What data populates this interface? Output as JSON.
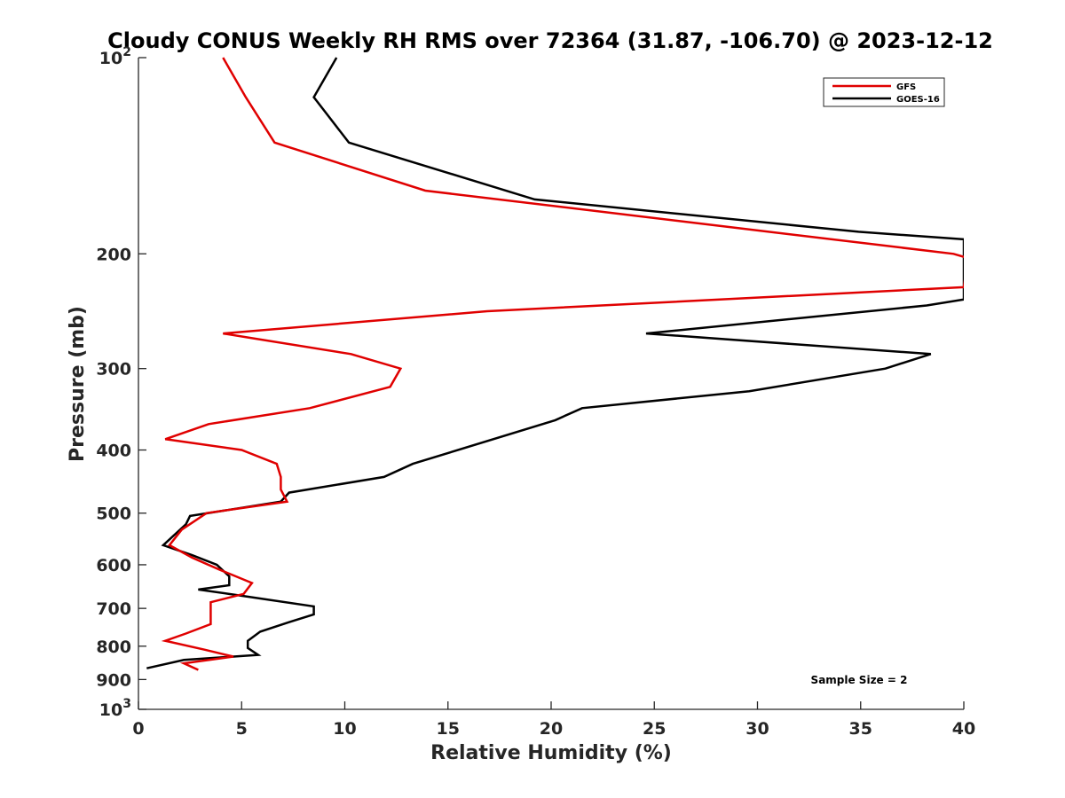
{
  "chart_data": {
    "type": "line",
    "title": "Cloudy CONUS Weekly RH RMS over 72364 (31.87, -106.70) @ 2023-12-12",
    "xlabel": "Relative Humidity (%)",
    "ylabel": "Pressure (mb)",
    "xlim": [
      0,
      40
    ],
    "ylim": [
      100,
      1000
    ],
    "y_scale": "log",
    "y_reversed": true,
    "grid": false,
    "x_ticks": [
      0,
      5,
      10,
      15,
      20,
      25,
      30,
      35,
      40
    ],
    "y_ticks": [
      {
        "value": 100,
        "label": "10",
        "sup": "2"
      },
      {
        "value": 200,
        "label": "200"
      },
      {
        "value": 300,
        "label": "300"
      },
      {
        "value": 400,
        "label": "400"
      },
      {
        "value": 500,
        "label": "500"
      },
      {
        "value": 600,
        "label": "600"
      },
      {
        "value": 700,
        "label": "700"
      },
      {
        "value": 800,
        "label": "800"
      },
      {
        "value": 900,
        "label": "900"
      },
      {
        "value": 1000,
        "label": "10",
        "sup": "3"
      }
    ],
    "legend_position": "top-right",
    "annotation": "Sample Size = 2",
    "series": [
      {
        "name": "GFS",
        "color": "#e00000",
        "points": [
          [
            4.1,
            100
          ],
          [
            5.2,
            115
          ],
          [
            6.6,
            135
          ],
          [
            13.9,
            160
          ],
          [
            39.5,
            200
          ],
          [
            40.2,
            203
          ],
          [
            40.0,
            225
          ],
          [
            16.9,
            245
          ],
          [
            4.1,
            265
          ],
          [
            10.3,
            285
          ],
          [
            12.7,
            300
          ],
          [
            12.2,
            320
          ],
          [
            8.3,
            345
          ],
          [
            3.4,
            365
          ],
          [
            1.3,
            385
          ],
          [
            5.0,
            400
          ],
          [
            6.7,
            420
          ],
          [
            6.9,
            440
          ],
          [
            6.9,
            460
          ],
          [
            7.2,
            480
          ],
          [
            3.3,
            500
          ],
          [
            2.1,
            530
          ],
          [
            1.5,
            560
          ],
          [
            2.6,
            585
          ],
          [
            3.9,
            610
          ],
          [
            5.5,
            640
          ],
          [
            5.1,
            665
          ],
          [
            3.5,
            685
          ],
          [
            3.5,
            705
          ],
          [
            3.5,
            740
          ],
          [
            2.3,
            765
          ],
          [
            1.3,
            785
          ],
          [
            3.2,
            810
          ],
          [
            4.6,
            830
          ],
          [
            2.2,
            850
          ],
          [
            2.9,
            870
          ]
        ]
      },
      {
        "name": "GOES-16",
        "color": "#000000",
        "points": [
          [
            9.6,
            100
          ],
          [
            8.5,
            115
          ],
          [
            10.2,
            135
          ],
          [
            19.2,
            165
          ],
          [
            34.9,
            185
          ],
          [
            40.0,
            190
          ],
          [
            40.0,
            235
          ],
          [
            38.2,
            240
          ],
          [
            24.6,
            265
          ],
          [
            38.4,
            285
          ],
          [
            36.2,
            300
          ],
          [
            29.6,
            325
          ],
          [
            21.5,
            345
          ],
          [
            20.2,
            360
          ],
          [
            13.3,
            420
          ],
          [
            11.9,
            440
          ],
          [
            7.3,
            465
          ],
          [
            6.9,
            480
          ],
          [
            2.5,
            505
          ],
          [
            2.3,
            520
          ],
          [
            1.2,
            560
          ],
          [
            2.6,
            580
          ],
          [
            3.8,
            600
          ],
          [
            4.4,
            625
          ],
          [
            4.4,
            645
          ],
          [
            2.9,
            655
          ],
          [
            5.1,
            670
          ],
          [
            8.5,
            695
          ],
          [
            8.5,
            715
          ],
          [
            7.3,
            735
          ],
          [
            5.9,
            760
          ],
          [
            5.3,
            785
          ],
          [
            5.3,
            805
          ],
          [
            5.8,
            825
          ],
          [
            2.2,
            840
          ],
          [
            0.4,
            865
          ]
        ]
      }
    ]
  }
}
